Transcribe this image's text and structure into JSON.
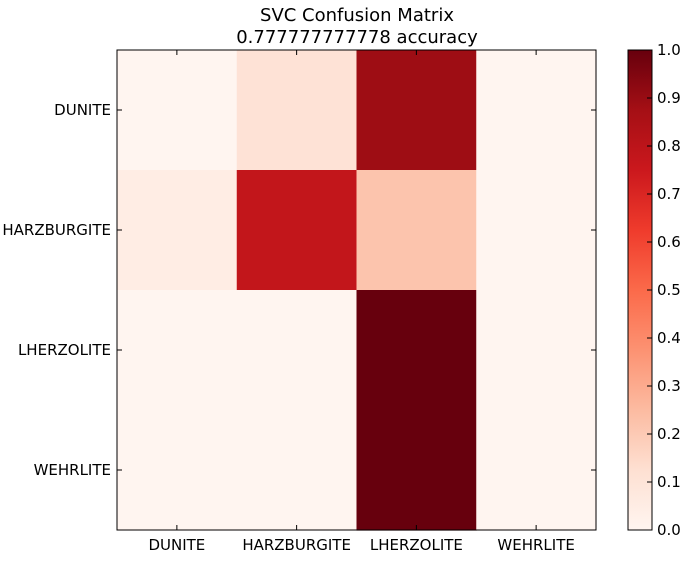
{
  "chart_data": {
    "type": "heatmap",
    "title": "SVC Confusion Matrix",
    "subtitle": "0.777777777778 accuracy",
    "row_labels": [
      "DUNITE",
      "HARZBURGITE",
      "LHERZOLITE",
      "WEHRLITE"
    ],
    "col_labels": [
      "DUNITE",
      "HARZBURGITE",
      "LHERZOLITE",
      "WEHRLITE"
    ],
    "values": [
      [
        0.0,
        0.11,
        0.89,
        0.0
      ],
      [
        0.05,
        0.78,
        0.22,
        0.0
      ],
      [
        0.0,
        0.0,
        1.0,
        0.0
      ],
      [
        0.0,
        0.0,
        1.0,
        0.0
      ]
    ],
    "colormap": "Reds",
    "colorbar": {
      "range": [
        0.0,
        1.0
      ],
      "ticks": [
        "0.0",
        "0.1",
        "0.2",
        "0.3",
        "0.4",
        "0.5",
        "0.6",
        "0.7",
        "0.8",
        "0.9",
        "1.0"
      ]
    },
    "grid": false,
    "colors": {
      "low": "#fff5f0",
      "high": "#67000d"
    }
  }
}
